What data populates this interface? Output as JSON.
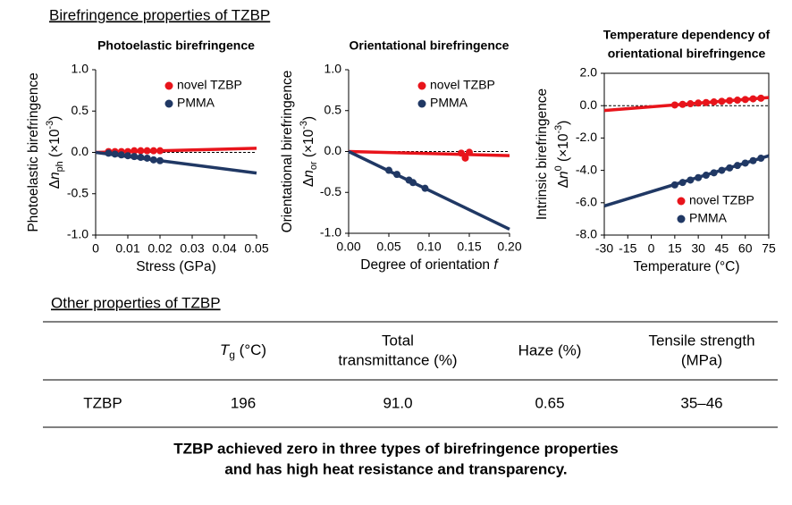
{
  "heading": "Birefringence properties of TZBP",
  "chart_data": [
    {
      "type": "scatter",
      "title": [
        "Photoelastic birefringence"
      ],
      "ylabel": [
        "Photoelastic birefringence",
        [
          {
            "text": "Δ"
          },
          {
            "text": "n",
            "italic": true
          },
          {
            "text": "ph",
            "sub": true
          },
          {
            "text": " (×10"
          },
          {
            "text": "-3",
            "sup": true
          },
          {
            "text": ")"
          }
        ]
      ],
      "xlabel": "Stress (GPa)",
      "xlim": [
        0,
        0.05
      ],
      "xticks": [
        0,
        0.01,
        0.02,
        0.03,
        0.04,
        0.05
      ],
      "ylim": [
        -1,
        1
      ],
      "yticks": [
        {
          "value": 1,
          "label": "1.0"
        },
        0.5,
        {
          "value": 0,
          "label": "0.0"
        },
        -0.5,
        {
          "value": -1,
          "label": "-1.0"
        }
      ],
      "hline": 0,
      "legend": "upper right",
      "box": false,
      "series": [
        {
          "name": "novel TZBP",
          "color": "#e8141b",
          "x": [
            0.004,
            0.006,
            0.008,
            0.01,
            0.012,
            0.014,
            0.016,
            0.018,
            0.02
          ],
          "values": [
            0.01,
            0.01,
            0.01,
            0.01,
            0.02,
            0.02,
            0.02,
            0.02,
            0.02
          ]
        },
        {
          "name": "PMMA",
          "color": "#203864",
          "x": [
            0.004,
            0.006,
            0.008,
            0.01,
            0.012,
            0.014,
            0.016,
            0.018,
            0.02
          ],
          "values": [
            -0.01,
            -0.02,
            -0.03,
            -0.04,
            -0.05,
            -0.06,
            -0.07,
            -0.09,
            -0.1
          ]
        }
      ],
      "fits": [
        {
          "color": "#e8141b",
          "x": [
            0,
            0.05
          ],
          "values": [
            0,
            0.05
          ]
        },
        {
          "color": "#203864",
          "x": [
            0,
            0.05
          ],
          "values": [
            0,
            -0.25
          ]
        }
      ]
    },
    {
      "type": "scatter",
      "title": [
        "Orientational birefringence"
      ],
      "ylabel": [
        "Orientational birefringence",
        [
          {
            "text": "Δ"
          },
          {
            "text": "n",
            "italic": true
          },
          {
            "text": "or",
            "sub": true
          },
          {
            "text": " (×10"
          },
          {
            "text": "-3",
            "sup": true
          },
          {
            "text": ")"
          }
        ]
      ],
      "xlabel": [
        {
          "text": "Degree of orientation "
        },
        {
          "text": "f",
          "italic": true
        }
      ],
      "xlim": [
        0,
        0.2
      ],
      "xticks": [
        {
          "value": 0,
          "label": "0.00"
        },
        0.05,
        {
          "value": 0.1,
          "label": "0.10"
        },
        0.15,
        {
          "value": 0.2,
          "label": "0.20"
        }
      ],
      "ylim": [
        -1,
        1
      ],
      "yticks": [
        {
          "value": 1,
          "label": "1.0"
        },
        0.5,
        {
          "value": 0,
          "label": "0.0"
        },
        -0.5,
        {
          "value": -1,
          "label": "-1.0"
        }
      ],
      "hline": 0,
      "legend": "upper right",
      "box": false,
      "series": [
        {
          "name": "novel TZBP",
          "color": "#e8141b",
          "x": [
            0.14,
            0.145,
            0.15
          ],
          "values": [
            -0.02,
            -0.08,
            -0.01
          ]
        },
        {
          "name": "PMMA",
          "color": "#203864",
          "x": [
            0.05,
            0.06,
            0.075,
            0.08,
            0.095
          ],
          "values": [
            -0.23,
            -0.28,
            -0.35,
            -0.38,
            -0.45
          ]
        }
      ],
      "fits": [
        {
          "color": "#e8141b",
          "x": [
            0,
            0.2
          ],
          "values": [
            0,
            -0.05
          ]
        },
        {
          "color": "#203864",
          "x": [
            0,
            0.2
          ],
          "values": [
            0,
            -0.95
          ]
        }
      ]
    },
    {
      "type": "scatter",
      "title": [
        "Temperature dependency of",
        "orientational birefringence"
      ],
      "ylabel": [
        "Intrinsic birefringence",
        [
          {
            "text": "Δ"
          },
          {
            "text": "n",
            "italic": true
          },
          {
            "text": "0",
            "sup": true
          },
          {
            "text": " (×10"
          },
          {
            "text": "-3",
            "sup": true
          },
          {
            "text": ")"
          }
        ]
      ],
      "xlabel": "Temperature (°C)",
      "xlim": [
        -30,
        75
      ],
      "xticks": [
        -30,
        -15,
        0,
        15,
        30,
        45,
        60,
        75
      ],
      "ylim": [
        -8,
        2
      ],
      "yticks": [
        {
          "value": 2,
          "label": "2.0"
        },
        {
          "value": 0,
          "label": "0.0"
        },
        {
          "value": -2,
          "label": "-2.0"
        },
        {
          "value": -4,
          "label": "-4.0"
        },
        {
          "value": -6,
          "label": "-6.0"
        },
        {
          "value": -8,
          "label": "-8.0"
        }
      ],
      "hline": 0,
      "legend": "lower right",
      "box": true,
      "series": [
        {
          "name": "novel TZBP",
          "color": "#e8141b",
          "x": [
            15,
            20,
            25,
            30,
            35,
            40,
            45,
            50,
            55,
            60,
            65,
            70
          ],
          "values": [
            0.04,
            0.08,
            0.12,
            0.16,
            0.19,
            0.23,
            0.27,
            0.31,
            0.34,
            0.38,
            0.42,
            0.46
          ]
        },
        {
          "name": "PMMA",
          "color": "#203864",
          "x": [
            15,
            20,
            25,
            30,
            35,
            40,
            45,
            50,
            55,
            60,
            65,
            70
          ],
          "values": [
            -4.9,
            -4.75,
            -4.6,
            -4.45,
            -4.3,
            -4.15,
            -4.0,
            -3.85,
            -3.7,
            -3.55,
            -3.4,
            -3.25
          ]
        }
      ],
      "fits": [
        {
          "color": "#e8141b",
          "x": [
            -30,
            75
          ],
          "values": [
            -0.3,
            0.5
          ]
        },
        {
          "color": "#203864",
          "x": [
            -30,
            75
          ],
          "values": [
            -6.2,
            -3.1
          ]
        }
      ]
    }
  ],
  "table": {
    "title": "Other properties of TZBP",
    "header": [
      [
        [
          {
            "text": "T",
            "italic": true
          },
          {
            "text": "g",
            "sub": true
          },
          {
            "text": " (°C)"
          }
        ]
      ],
      [
        "Total",
        "transmittance (%)"
      ],
      [
        "Haze (%)"
      ],
      [
        "Tensile strength",
        "(MPa)"
      ]
    ],
    "row": [
      "TZBP",
      "196",
      "91.0",
      "0.65",
      "35–46"
    ]
  },
  "caption": [
    "TZBP achieved zero in three types of birefringence properties",
    "and has high heat resistance and transparency."
  ]
}
